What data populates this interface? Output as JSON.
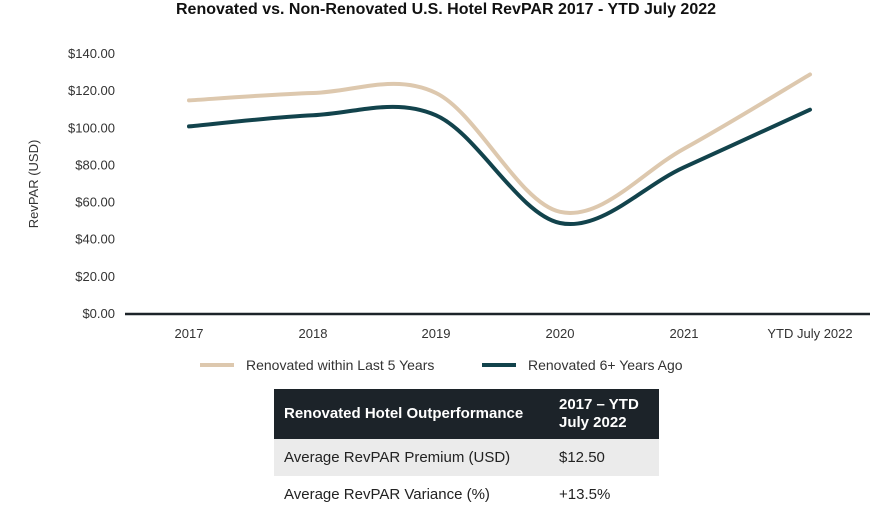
{
  "chart_data": {
    "type": "line",
    "title": "Renovated vs. Non-Renovated U.S. Hotel RevPAR 2017 - YTD July 2022",
    "xlabel": "",
    "ylabel": "RevPAR (USD)",
    "categories": [
      "2017",
      "2018",
      "2019",
      "2020",
      "2021",
      "YTD July 2022"
    ],
    "y_ticks": [
      "$0.00",
      "$20.00",
      "$40.00",
      "$60.00",
      "$80.00",
      "$100.00",
      "$120.00",
      "$140.00"
    ],
    "ylim": [
      0,
      140
    ],
    "grid": false,
    "legend_position": "bottom",
    "series": [
      {
        "name": "Renovated within Last 5 Years",
        "values": [
          115,
          119,
          119,
          55,
          89,
          129
        ],
        "color": "#ddc8ae"
      },
      {
        "name": "Renovated 6+ Years Ago",
        "values": [
          101,
          107,
          107,
          49,
          79,
          110
        ],
        "color": "#12434c"
      }
    ]
  },
  "table": {
    "header": [
      "Renovated Hotel Outperformance",
      "2017 – YTD July 2022"
    ],
    "rows": [
      [
        "Average RevPAR Premium (USD)",
        "$12.50"
      ],
      [
        "Average RevPAR Variance (%)",
        "+13.5%"
      ]
    ]
  }
}
